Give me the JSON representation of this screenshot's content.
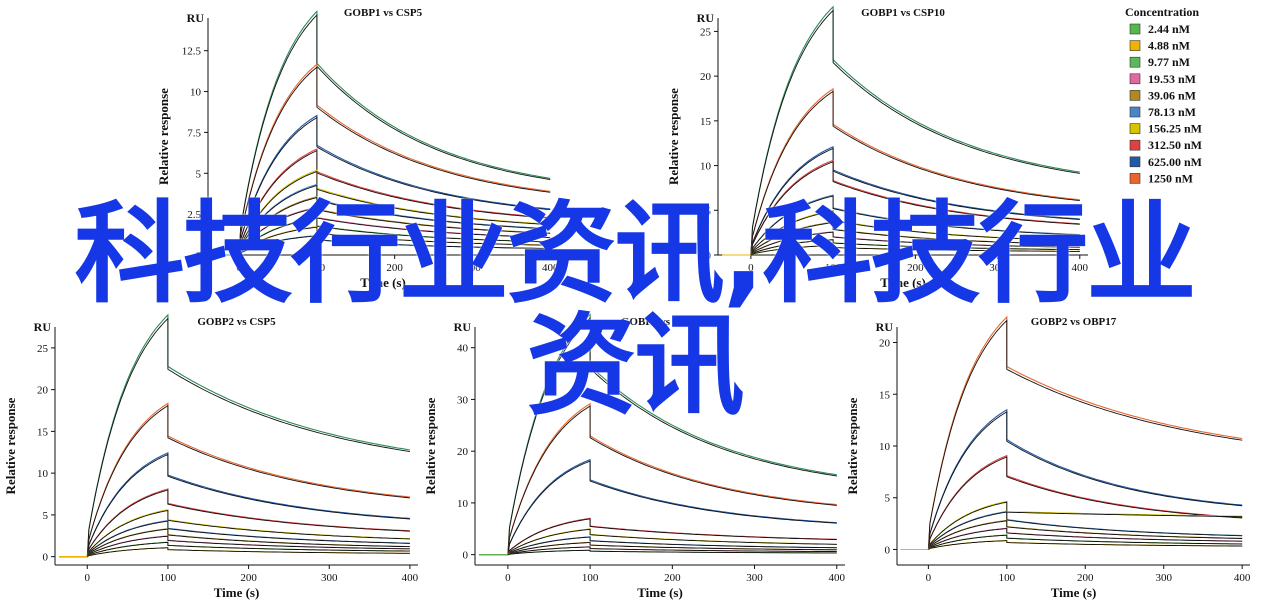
{
  "chart_data": [
    {
      "type": "line",
      "title": "GOBP1 vs CSP5",
      "unit_label": "RU",
      "xlabel": "Time (s)",
      "ylabel": "Relative response",
      "xlim": [
        -40,
        410
      ],
      "ylim": [
        0,
        14.5
      ],
      "xticks": [
        0,
        100,
        200,
        300,
        400
      ],
      "yticks": [
        0,
        2.5,
        5,
        7.5,
        10,
        12.5
      ],
      "ytick_labels": [
        "0",
        "2.5",
        "5",
        "7.5",
        "10",
        "12.5"
      ],
      "series": [
        {
          "color": "#2e8b57",
          "peak": 13.8,
          "end": 3.5
        },
        {
          "color": "#e8662e",
          "peak": 10.8,
          "end": 2.9
        },
        {
          "color": "#1e5aa8",
          "peak": 7.9,
          "end": 2.1
        },
        {
          "color": "#e04040",
          "peak": 6.0,
          "end": 1.7
        },
        {
          "color": "#d6c400",
          "peak": 4.8,
          "end": 1.4
        },
        {
          "color": "#4a86c6",
          "peak": 4.0,
          "end": 1.2
        },
        {
          "color": "#b08a1e",
          "peak": 3.3,
          "end": 1.0
        },
        {
          "color": "#e06aa0",
          "peak": 2.7,
          "end": 0.8
        },
        {
          "color": "#56b84a",
          "peak": 2.1,
          "end": 0.6
        },
        {
          "color": "#f0b400",
          "peak": 1.6,
          "end": 0.45
        },
        {
          "color": "#3a8fd0",
          "peak": 1.1,
          "end": 0.3
        }
      ]
    },
    {
      "type": "line",
      "title": "GOBP1 vs CSP10",
      "unit_label": "RU",
      "xlabel": "Time (s)",
      "ylabel": "Relative response",
      "xlim": [
        -40,
        410
      ],
      "ylim": [
        0,
        26.5
      ],
      "xticks": [
        0,
        100,
        200,
        300,
        400
      ],
      "yticks": [
        0,
        5,
        10,
        15,
        20,
        25
      ],
      "ytick_labels": [
        "0",
        "5",
        "10",
        "15",
        "20",
        "25"
      ],
      "series": [
        {
          "color": "#2e8b57",
          "peak": 25.7,
          "end": 6.9
        },
        {
          "color": "#e8662e",
          "peak": 17.2,
          "end": 4.6
        },
        {
          "color": "#1e5aa8",
          "peak": 11.2,
          "end": 3.0
        },
        {
          "color": "#e04040",
          "peak": 9.8,
          "end": 2.6
        },
        {
          "color": "#4a86c6",
          "peak": 6.2,
          "end": 1.7
        },
        {
          "color": "#d6c400",
          "peak": 4.6,
          "end": 1.2
        },
        {
          "color": "#b08a1e",
          "peak": 3.4,
          "end": 0.9
        },
        {
          "color": "#e06aa0",
          "peak": 2.4,
          "end": 0.65
        },
        {
          "color": "#56b84a",
          "peak": 1.6,
          "end": 0.45
        },
        {
          "color": "#f0b400",
          "peak": 1.0,
          "end": 0.3
        }
      ]
    },
    {
      "type": "line",
      "title": "GOBP2 vs CSP5",
      "unit_label": "RU",
      "xlabel": "Time (s)",
      "ylabel": "Relative response",
      "xlim": [
        -40,
        410
      ],
      "ylim": [
        -1,
        27.5
      ],
      "xticks": [
        0,
        100,
        200,
        300,
        400
      ],
      "yticks": [
        0,
        5,
        10,
        15,
        20,
        25
      ],
      "ytick_labels": [
        "0",
        "5",
        "10",
        "15",
        "20",
        "25"
      ],
      "series": [
        {
          "color": "#2e8b57",
          "peak": 26.8,
          "end": 9.5
        },
        {
          "color": "#e8662e",
          "peak": 17.0,
          "end": 5.3
        },
        {
          "color": "#1e5aa8",
          "peak": 11.5,
          "end": 3.4
        },
        {
          "color": "#e04040",
          "peak": 7.5,
          "end": 2.3
        },
        {
          "color": "#d6c400",
          "peak": 5.2,
          "end": 1.6
        },
        {
          "color": "#4a86c6",
          "peak": 4.0,
          "end": 1.2
        },
        {
          "color": "#b08a1e",
          "peak": 3.1,
          "end": 0.9
        },
        {
          "color": "#e06aa0",
          "peak": 2.3,
          "end": 0.7
        },
        {
          "color": "#56b84a",
          "peak": 1.6,
          "end": 0.5
        },
        {
          "color": "#f0b400",
          "peak": 1.0,
          "end": 0.3
        }
      ]
    },
    {
      "type": "line",
      "title": "GOBP2 vs CSP8",
      "unit_label": "RU",
      "xlabel": "Time (s)",
      "ylabel": "Relative response",
      "xlim": [
        -40,
        410
      ],
      "ylim": [
        -2,
        44
      ],
      "xticks": [
        0,
        100,
        200,
        300,
        400
      ],
      "yticks": [
        0,
        10,
        20,
        30,
        40
      ],
      "ytick_labels": [
        "0",
        "10",
        "20",
        "30",
        "40"
      ],
      "series": [
        {
          "color": "#2e8b57",
          "peak": 43.0,
          "end": 11.5
        },
        {
          "color": "#e8662e",
          "peak": 27.0,
          "end": 7.2
        },
        {
          "color": "#1e5aa8",
          "peak": 17.0,
          "end": 4.6
        },
        {
          "color": "#e04040",
          "peak": 6.5,
          "end": 2.2
        },
        {
          "color": "#d6c400",
          "peak": 4.6,
          "end": 1.5
        },
        {
          "color": "#4a86c6",
          "peak": 3.2,
          "end": 1.0
        },
        {
          "color": "#b08a1e",
          "peak": 2.2,
          "end": 0.7
        },
        {
          "color": "#e06aa0",
          "peak": 1.4,
          "end": 0.45
        },
        {
          "color": "#56b84a",
          "peak": 0.8,
          "end": 0.25
        }
      ]
    },
    {
      "type": "line",
      "title": "GOBP2 vs OBP17",
      "unit_label": "RU",
      "xlabel": "Time (s)",
      "ylabel": "Relative response",
      "xlim": [
        -40,
        410
      ],
      "ylim": [
        -1.5,
        21.5
      ],
      "xticks": [
        0,
        100,
        200,
        300,
        400
      ],
      "yticks": [
        0,
        5,
        10,
        15,
        20
      ],
      "ytick_labels": [
        "0",
        "5",
        "10",
        "15",
        "20"
      ],
      "series": [
        {
          "color": "#e8662e",
          "peak": 20.8,
          "end": 8.0
        },
        {
          "color": "#1e5aa8",
          "peak": 12.5,
          "end": 3.2
        },
        {
          "color": "#e04040",
          "peak": 8.4,
          "end": 2.3
        },
        {
          "color": "#d6c400",
          "peak": 4.3,
          "end": 2.6
        },
        {
          "color": "#4a86c6",
          "peak": 3.4,
          "end": 1.0
        },
        {
          "color": "#b08a1e",
          "peak": 2.6,
          "end": 0.8
        },
        {
          "color": "#e06aa0",
          "peak": 1.9,
          "end": 0.6
        },
        {
          "color": "#56b84a",
          "peak": 1.3,
          "end": 0.4
        },
        {
          "color": "#f0b400",
          "peak": 0.8,
          "end": 0.25
        }
      ]
    }
  ],
  "legend": {
    "title": "Concentration",
    "placement": "top-right",
    "items": [
      {
        "label": "2.44 nM",
        "color": "#56b84a"
      },
      {
        "label": "4.88 nM",
        "color": "#f0b400"
      },
      {
        "label": "9.77 nM",
        "color": "#5cb85c"
      },
      {
        "label": "19.53 nM",
        "color": "#e06aa0"
      },
      {
        "label": "39.06 nM",
        "color": "#b08a1e"
      },
      {
        "label": "78.13 nM",
        "color": "#4a86c6"
      },
      {
        "label": "156.25 nM",
        "color": "#d6c400"
      },
      {
        "label": "312.50 nM",
        "color": "#e04040"
      },
      {
        "label": "625.00 nM",
        "color": "#1e5aa8"
      },
      {
        "label": "1250 nM",
        "color": "#e8662e"
      }
    ]
  },
  "watermark": {
    "line1": "科技行业资讯,科技行业",
    "line2": "资讯",
    "color": "#1537e6"
  }
}
